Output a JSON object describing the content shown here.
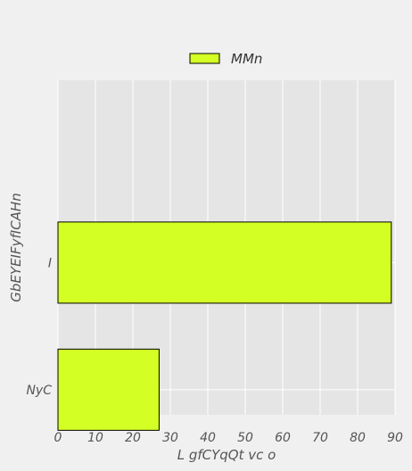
{
  "chart_data": {
    "type": "bar",
    "orientation": "horizontal",
    "categories": [
      "NyC",
      "I"
    ],
    "series": [
      {
        "name": "MMn",
        "values": [
          27,
          89
        ]
      }
    ],
    "xlabel": "L gfCYqQt vc o",
    "ylabel": "GbEYEIFyfICAHn",
    "xlim": [
      0,
      90
    ],
    "xticks": [
      "0",
      "10",
      "20",
      "30",
      "40",
      "50",
      "60",
      "70",
      "80",
      "90"
    ],
    "grid": true,
    "legend_position": "top-center",
    "colors": {
      "bar": "#d4ff24",
      "plot_background": "#e5e5e5",
      "figure_background": "#f0f0f0",
      "grid": "#ffffff",
      "bar_edge": "#000000"
    }
  }
}
